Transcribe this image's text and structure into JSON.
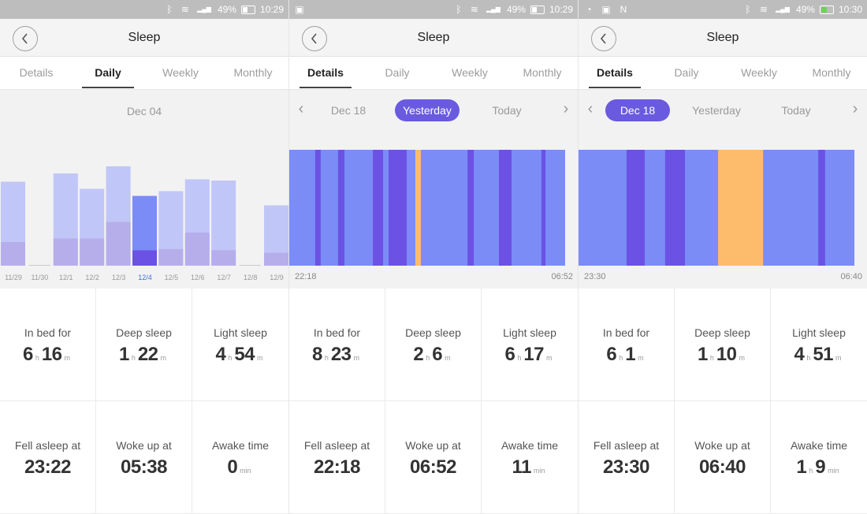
{
  "panels": [
    {
      "status": {
        "battery": "49%",
        "time": "10:29",
        "left_icons": [],
        "charging": false
      },
      "header": {
        "title": "Sleep"
      },
      "tabs": [
        {
          "label": "Details"
        },
        {
          "label": "Daily"
        },
        {
          "label": "Weekly"
        },
        {
          "label": "Monthly"
        }
      ],
      "active_tab": 1,
      "date": "Dec 04",
      "chart_data": {
        "type": "bar",
        "categories": [
          "11/29",
          "11/30",
          "12/1",
          "12/2",
          "12/3",
          "12/4",
          "12/5",
          "12/6",
          "12/7",
          "12/8",
          "12/9"
        ],
        "selected_category": "12/4",
        "series": [
          {
            "name": "",
            "values": [
              0.71,
              0.0,
              0.78,
              0.65,
              0.84,
              0.59,
              0.63,
              0.73,
              0.72,
              0.0,
              0.51
            ]
          },
          {
            "name": "",
            "values": [
              0.2,
              0.0,
              0.23,
              0.23,
              0.37,
              0.13,
              0.14,
              0.28,
              0.13,
              0.0,
              0.11
            ]
          }
        ]
      },
      "stats": [
        {
          "label": "In bed for",
          "h": "6",
          "m": "16"
        },
        {
          "label": "Deep sleep",
          "h": "1",
          "m": "22"
        },
        {
          "label": "Light sleep",
          "h": "4",
          "m": "54"
        },
        {
          "label": "Fell asleep at",
          "value": "23:22"
        },
        {
          "label": "Woke up at",
          "value": "05:38"
        },
        {
          "label": "Awake time",
          "value": "0",
          "unit": "min"
        }
      ],
      "units": {
        "h": "h",
        "m": "m"
      }
    },
    {
      "status": {
        "battery": "49%",
        "time": "10:29",
        "left_icons": [
          "image-icon"
        ],
        "charging": false
      },
      "header": {
        "title": "Sleep"
      },
      "tabs": [
        {
          "label": "Details"
        },
        {
          "label": "Daily"
        },
        {
          "label": "Weekly"
        },
        {
          "label": "Monthly"
        }
      ],
      "active_tab": 0,
      "date_nav": {
        "prev": "Dec 18",
        "current": "Yesterday",
        "next": "Today",
        "selected": 1
      },
      "chart_data": {
        "type": "timeline",
        "start": "22:18",
        "end": "06:52",
        "segments": [
          {
            "stage": "light",
            "from": 0.0,
            "to": 0.094
          },
          {
            "stage": "deep",
            "from": 0.094,
            "to": 0.114
          },
          {
            "stage": "light",
            "from": 0.114,
            "to": 0.177
          },
          {
            "stage": "deep",
            "from": 0.177,
            "to": 0.2
          },
          {
            "stage": "light",
            "from": 0.2,
            "to": 0.303
          },
          {
            "stage": "deep",
            "from": 0.303,
            "to": 0.34
          },
          {
            "stage": "light",
            "from": 0.34,
            "to": 0.36
          },
          {
            "stage": "deep",
            "from": 0.36,
            "to": 0.426
          },
          {
            "stage": "light",
            "from": 0.426,
            "to": 0.457
          },
          {
            "stage": "awake",
            "from": 0.457,
            "to": 0.477
          },
          {
            "stage": "light",
            "from": 0.477,
            "to": 0.646
          },
          {
            "stage": "deep",
            "from": 0.646,
            "to": 0.669
          },
          {
            "stage": "light",
            "from": 0.669,
            "to": 0.76
          },
          {
            "stage": "deep",
            "from": 0.76,
            "to": 0.806
          },
          {
            "stage": "light",
            "from": 0.806,
            "to": 0.914
          },
          {
            "stage": "deep",
            "from": 0.914,
            "to": 0.929
          },
          {
            "stage": "light",
            "from": 0.929,
            "to": 1.0
          }
        ]
      },
      "stats": [
        {
          "label": "In bed for",
          "h": "8",
          "m": "23"
        },
        {
          "label": "Deep sleep",
          "h": "2",
          "m": "6"
        },
        {
          "label": "Light sleep",
          "h": "6",
          "m": "17"
        },
        {
          "label": "Fell asleep at",
          "value": "22:18"
        },
        {
          "label": "Woke up at",
          "value": "06:52"
        },
        {
          "label": "Awake time",
          "value": "11",
          "unit": "min"
        }
      ],
      "units": {
        "h": "h",
        "m": "m"
      }
    },
    {
      "status": {
        "battery": "49%",
        "time": "10:30",
        "left_icons": [
          "whatsapp-icon",
          "image-icon",
          "n-app-icon"
        ],
        "charging": true
      },
      "header": {
        "title": "Sleep"
      },
      "tabs": [
        {
          "label": "Details"
        },
        {
          "label": "Daily"
        },
        {
          "label": "Weekly"
        },
        {
          "label": "Monthly"
        }
      ],
      "active_tab": 0,
      "date_nav": {
        "prev": "Dec 18",
        "current": "Yesterday",
        "next": "Today",
        "selected": 0
      },
      "chart_data": {
        "type": "timeline",
        "start": "23:30",
        "end": "06:40",
        "segments": [
          {
            "stage": "light",
            "from": 0.0,
            "to": 0.174
          },
          {
            "stage": "deep",
            "from": 0.174,
            "to": 0.24
          },
          {
            "stage": "light",
            "from": 0.24,
            "to": 0.314
          },
          {
            "stage": "deep",
            "from": 0.314,
            "to": 0.386
          },
          {
            "stage": "light",
            "from": 0.386,
            "to": 0.506
          },
          {
            "stage": "awake",
            "from": 0.506,
            "to": 0.669
          },
          {
            "stage": "light",
            "from": 0.669,
            "to": 0.869
          },
          {
            "stage": "deep",
            "from": 0.869,
            "to": 0.894
          },
          {
            "stage": "light",
            "from": 0.894,
            "to": 1.0
          }
        ]
      },
      "stats": [
        {
          "label": "In bed for",
          "h": "6",
          "m": "1"
        },
        {
          "label": "Deep sleep",
          "h": "1",
          "m": "10"
        },
        {
          "label": "Light sleep",
          "h": "4",
          "m": "51"
        },
        {
          "label": "Fell asleep at",
          "value": "23:30"
        },
        {
          "label": "Woke up at",
          "value": "06:40"
        },
        {
          "label": "Awake time",
          "value": "1",
          "unit_h": "h",
          "value2": "9",
          "unit": "min"
        }
      ],
      "units": {
        "h": "h",
        "m": "m"
      }
    }
  ],
  "colors": {
    "accent": "#6a5ae0",
    "light_sleep": "#7b8cf7",
    "deep_sleep": "#6b52e4",
    "awake": "#fdbc6c",
    "bar_total": "#c0c6f7",
    "bar_deep": "#b6aeeb",
    "bar_total_selected": "#7b8cf7",
    "bar_deep_selected": "#6b52e4"
  }
}
